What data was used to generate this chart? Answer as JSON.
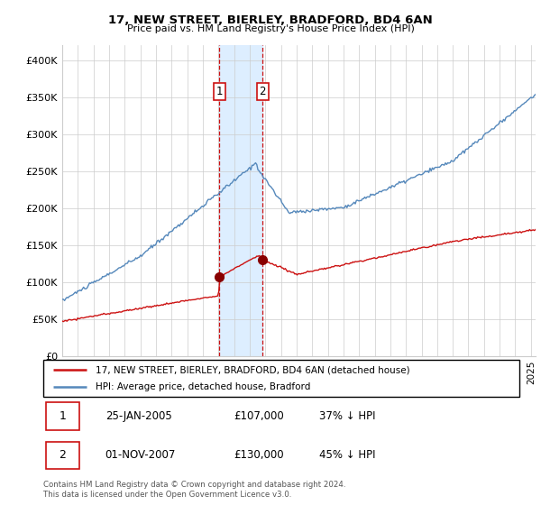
{
  "title": "17, NEW STREET, BIERLEY, BRADFORD, BD4 6AN",
  "subtitle": "Price paid vs. HM Land Registry's House Price Index (HPI)",
  "ylabel_ticks": [
    "£0",
    "£50K",
    "£100K",
    "£150K",
    "£200K",
    "£250K",
    "£300K",
    "£350K",
    "£400K"
  ],
  "ytick_values": [
    0,
    50000,
    100000,
    150000,
    200000,
    250000,
    300000,
    350000,
    400000
  ],
  "ylim": [
    0,
    420000
  ],
  "xlim_start": 1995.0,
  "xlim_end": 2025.3,
  "transaction1_x": 2005.07,
  "transaction1_y": 107000,
  "transaction2_x": 2007.83,
  "transaction2_y": 130000,
  "legend_line1": "17, NEW STREET, BIERLEY, BRADFORD, BD4 6AN (detached house)",
  "legend_line2": "HPI: Average price, detached house, Bradford",
  "table_row1_date": "25-JAN-2005",
  "table_row1_price": "£107,000",
  "table_row1_hpi": "37% ↓ HPI",
  "table_row2_date": "01-NOV-2007",
  "table_row2_price": "£130,000",
  "table_row2_hpi": "45% ↓ HPI",
  "footer": "Contains HM Land Registry data © Crown copyright and database right 2024.\nThis data is licensed under the Open Government Licence v3.0.",
  "hpi_color": "#5588bb",
  "price_color": "#cc1111",
  "highlight_color": "#ddeeff",
  "grid_color": "#cccccc",
  "box_color": "#cc1111",
  "hpi_noise_std": 1200,
  "price_noise_std": 600,
  "rand_seed": 10
}
